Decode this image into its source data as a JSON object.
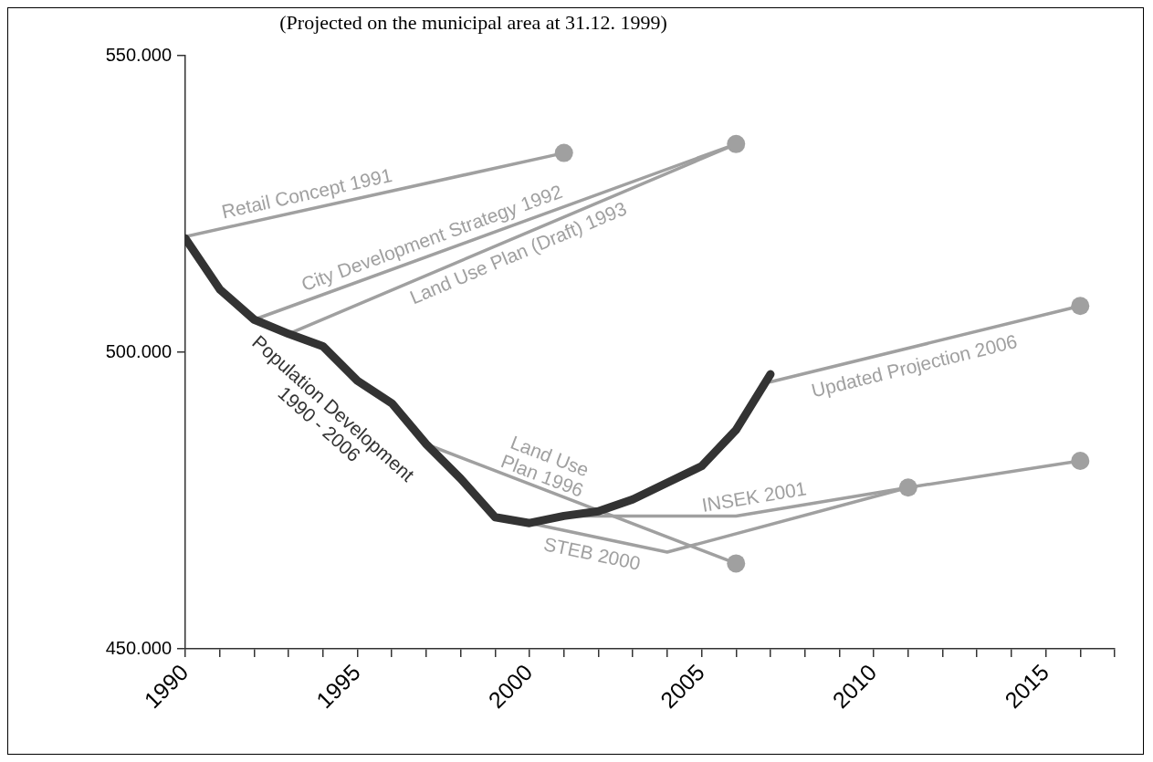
{
  "chart_data": {
    "type": "line",
    "title": "(Projected on the municipal area at 31.12. 1999)",
    "xlim": [
      1990,
      2017
    ],
    "xticks": [
      1990,
      {
        "value": 1991,
        "label": null
      },
      {
        "value": 1992,
        "label": null
      },
      {
        "value": 1993,
        "label": null
      },
      {
        "value": 1994,
        "label": null
      },
      1995,
      {
        "value": 1996,
        "label": null
      },
      {
        "value": 1997,
        "label": null
      },
      {
        "value": 1998,
        "label": null
      },
      {
        "value": 1999,
        "label": null
      },
      2000,
      {
        "value": 2001,
        "label": null
      },
      {
        "value": 2002,
        "label": null
      },
      {
        "value": 2003,
        "label": null
      },
      {
        "value": 2004,
        "label": null
      },
      2005,
      {
        "value": 2006,
        "label": null
      },
      {
        "value": 2007,
        "label": null
      },
      {
        "value": 2008,
        "label": null
      },
      {
        "value": 2009,
        "label": null
      },
      2010,
      {
        "value": 2011,
        "label": null
      },
      {
        "value": 2012,
        "label": null
      },
      {
        "value": 2013,
        "label": null
      },
      {
        "value": 2014,
        "label": null
      },
      2015,
      {
        "value": 2016,
        "label": null
      },
      {
        "value": 2017,
        "label": null
      }
    ],
    "ylim": [
      450000,
      550000
    ],
    "yticks": [
      {
        "value": 450000,
        "label": "450.000"
      },
      {
        "value": 500000,
        "label": "500.000"
      },
      {
        "value": 550000,
        "label": "550.000"
      }
    ],
    "grid": false,
    "legend": false,
    "line_style": "solid",
    "marker": "none",
    "series": [
      {
        "name": "Population Development 1990 - 2006",
        "color": "#333333",
        "x": [
          1990,
          1991,
          1992,
          1993,
          1994,
          1995,
          1996,
          1997,
          1998,
          1999,
          2000,
          2001,
          2002,
          2003,
          2004,
          2005,
          2006,
          2007
        ],
        "values": [
          519200,
          510600,
          505500,
          503100,
          501000,
          495200,
          491400,
          484500,
          478700,
          472200,
          471200,
          472400,
          473200,
          475200,
          478000,
          480800,
          486900,
          496300
        ]
      },
      {
        "name": "Retail Concept 1991",
        "color": "#a0a0a0",
        "x": [
          1990,
          2001
        ],
        "values": [
          519500,
          533600
        ]
      },
      {
        "name": "City Development Strategy 1992",
        "color": "#a0a0a0",
        "x": [
          1992,
          2006
        ],
        "values": [
          505500,
          535100
        ]
      },
      {
        "name": "Land Use Plan (Draft) 1993",
        "color": "#a0a0a0",
        "x": [
          1993,
          2006
        ],
        "values": [
          503100,
          535100
        ]
      },
      {
        "name": "Land Use Plan 1996",
        "color": "#a0a0a0",
        "x": [
          1997,
          2006
        ],
        "values": [
          484500,
          464400
        ]
      },
      {
        "name": "STEB 2000",
        "color": "#a0a0a0",
        "x": [
          2000,
          2004,
          2011
        ],
        "values": [
          471200,
          466300,
          477200
        ]
      },
      {
        "name": "INSEK 2001",
        "color": "#a0a0a0",
        "x": [
          2001,
          2006,
          2011,
          2016
        ],
        "values": [
          472400,
          472400,
          477200,
          481700
        ]
      },
      {
        "name": "Updated Projection 2006",
        "color": "#a0a0a0",
        "x": [
          2007,
          2016
        ],
        "values": [
          495000,
          507800
        ]
      },
      {
        "type": "scatter",
        "color": "#a0a0a0",
        "marker": "circle",
        "x": [
          2001,
          2006,
          2006,
          2011,
          2016,
          2016
        ],
        "values": [
          533600,
          535100,
          464400,
          477200,
          481700,
          507800
        ]
      }
    ]
  }
}
